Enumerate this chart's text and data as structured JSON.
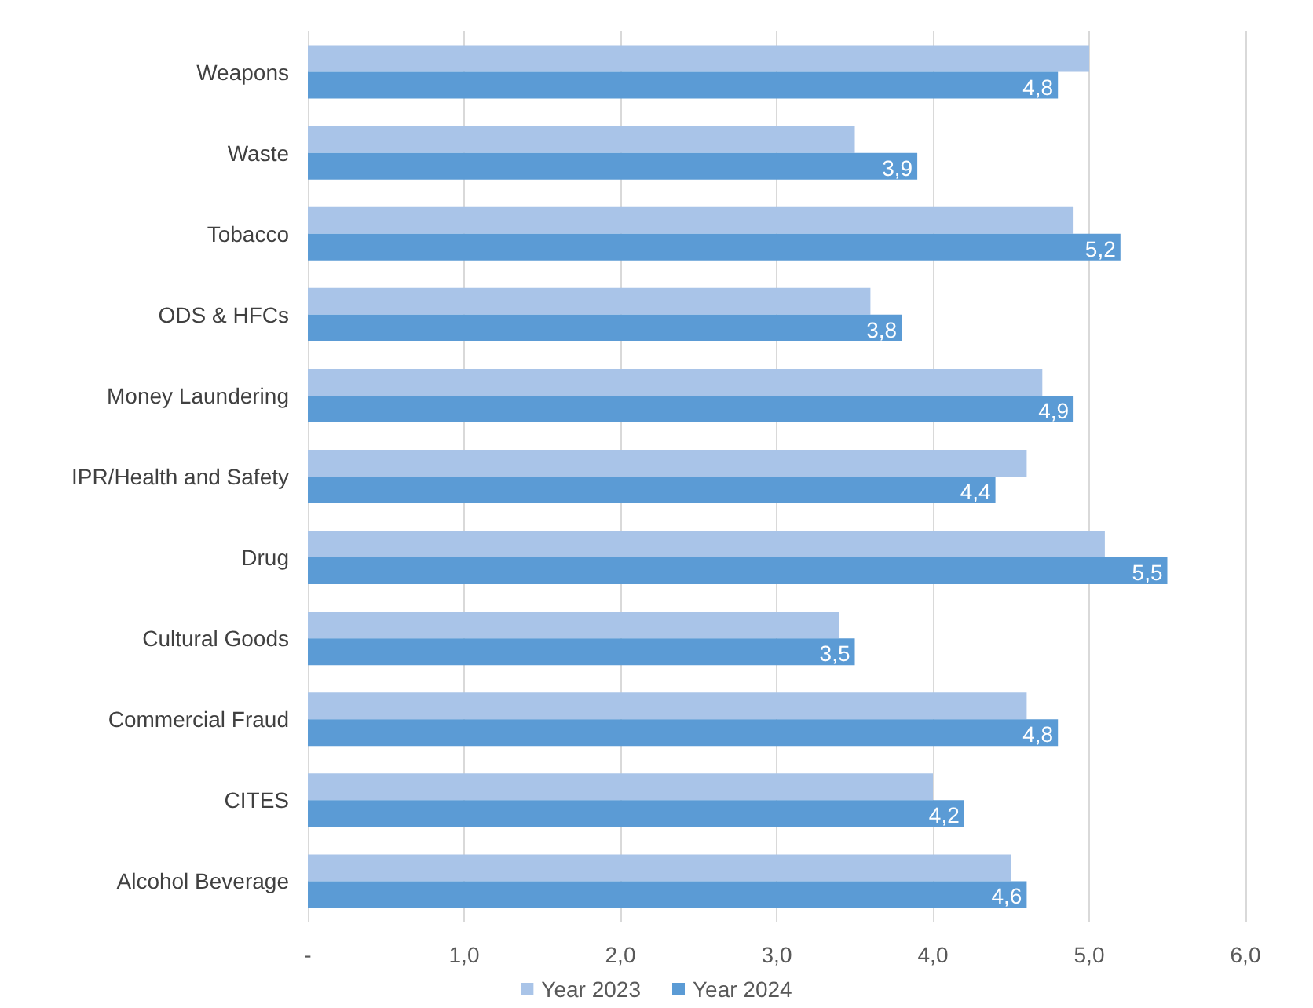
{
  "chart_data": {
    "type": "bar",
    "orientation": "horizontal",
    "categories": [
      "Weapons",
      "Waste",
      "Tobacco",
      "ODS & HFCs",
      "Money Laundering",
      "IPR/Health and Safety",
      "Drug",
      "Cultural Goods",
      "Commercial Fraud",
      "CITES",
      "Alcohol Beverage"
    ],
    "series": [
      {
        "name": "Year 2023",
        "color": "#a9c4e8",
        "values": [
          5.0,
          3.5,
          4.9,
          3.6,
          4.7,
          4.6,
          5.1,
          3.4,
          4.6,
          4.0,
          4.5
        ]
      },
      {
        "name": "Year 2024",
        "color": "#5b9bd5",
        "values": [
          4.8,
          3.9,
          5.2,
          3.8,
          4.9,
          4.4,
          5.5,
          3.5,
          4.8,
          4.2,
          4.6
        ],
        "value_labels": [
          "4,8",
          "3,9",
          "5,2",
          "3,8",
          "4,9",
          "4,4",
          "5,5",
          "3,5",
          "4,8",
          "4,2",
          "4,6"
        ]
      }
    ],
    "xlim": [
      0,
      6
    ],
    "xticks": [
      {
        "value": 0,
        "label": "-"
      },
      {
        "value": 1,
        "label": "1,0"
      },
      {
        "value": 2,
        "label": "2,0"
      },
      {
        "value": 3,
        "label": "3,0"
      },
      {
        "value": 4,
        "label": "4,0"
      },
      {
        "value": 5,
        "label": "5,0"
      },
      {
        "value": 6,
        "label": "6,0"
      }
    ],
    "grid": "x",
    "legend": "bottom"
  }
}
